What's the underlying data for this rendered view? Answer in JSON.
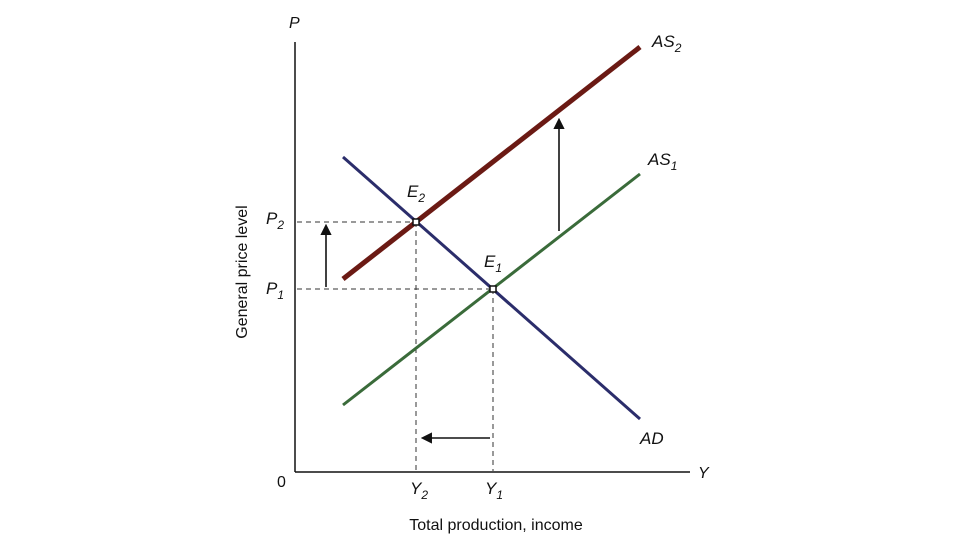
{
  "axes": {
    "y_symbol": "P",
    "x_symbol": "Y",
    "origin": "0",
    "y_title": "General price level",
    "x_title": "Total production, income"
  },
  "curves": {
    "as2": {
      "base": "AS",
      "sub": "2",
      "color": "#6b1a14"
    },
    "as1": {
      "base": "AS",
      "sub": "1",
      "color": "#3a6b3a"
    },
    "ad": {
      "label": "AD",
      "color": "#2b2d6b"
    }
  },
  "points": {
    "e1": {
      "base": "E",
      "sub": "1"
    },
    "e2": {
      "base": "E",
      "sub": "2"
    }
  },
  "ticks": {
    "p1": {
      "base": "P",
      "sub": "1"
    },
    "p2": {
      "base": "P",
      "sub": "2"
    },
    "y1": {
      "base": "Y",
      "sub": "1"
    },
    "y2": {
      "base": "Y",
      "sub": "2"
    }
  }
}
